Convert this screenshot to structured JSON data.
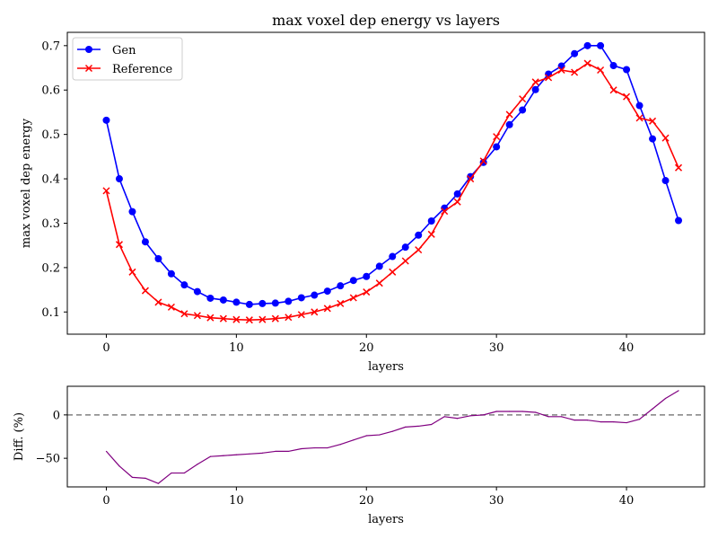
{
  "chart_data": [
    {
      "type": "line",
      "title": "max voxel dep energy vs layers",
      "xlabel": "layers",
      "ylabel": "max voxel dep energy",
      "xlim": [
        -3,
        46
      ],
      "ylim": [
        0.05,
        0.73
      ],
      "xticks": [
        0,
        10,
        20,
        30,
        40
      ],
      "yticks": [
        0.1,
        0.2,
        0.3,
        0.4,
        0.5,
        0.6,
        0.7
      ],
      "grid": false,
      "legend": "top-left",
      "x": [
        0,
        1,
        2,
        3,
        4,
        5,
        6,
        7,
        8,
        9,
        10,
        11,
        12,
        13,
        14,
        15,
        16,
        17,
        18,
        19,
        20,
        21,
        22,
        23,
        24,
        25,
        26,
        27,
        28,
        29,
        30,
        31,
        32,
        33,
        34,
        35,
        36,
        37,
        38,
        39,
        40,
        41,
        42,
        43,
        44
      ],
      "series": [
        {
          "name": "Gen",
          "color": "#0000ff",
          "marker": "circle",
          "values": [
            0.532,
            0.4,
            0.326,
            0.258,
            0.22,
            0.186,
            0.161,
            0.146,
            0.131,
            0.127,
            0.122,
            0.117,
            0.119,
            0.12,
            0.124,
            0.132,
            0.138,
            0.147,
            0.159,
            0.171,
            0.18,
            0.203,
            0.225,
            0.246,
            0.273,
            0.305,
            0.334,
            0.366,
            0.405,
            0.437,
            0.472,
            0.522,
            0.555,
            0.601,
            0.636,
            0.654,
            0.682,
            0.7,
            0.7,
            0.655,
            0.646,
            0.565,
            0.49,
            0.396,
            0.306
          ]
        },
        {
          "name": "Reference",
          "color": "#ff0000",
          "marker": "x",
          "values": [
            0.373,
            0.252,
            0.19,
            0.148,
            0.122,
            0.111,
            0.096,
            0.092,
            0.087,
            0.085,
            0.083,
            0.082,
            0.083,
            0.085,
            0.088,
            0.094,
            0.1,
            0.108,
            0.119,
            0.132,
            0.145,
            0.165,
            0.19,
            0.215,
            0.24,
            0.275,
            0.327,
            0.348,
            0.4,
            0.44,
            0.495,
            0.545,
            0.58,
            0.618,
            0.628,
            0.645,
            0.64,
            0.66,
            0.645,
            0.6,
            0.585,
            0.537,
            0.53,
            0.492,
            0.425
          ]
        }
      ]
    },
    {
      "type": "line",
      "xlabel": "layers",
      "ylabel": "Diff. (%)",
      "xlim": [
        -3,
        46
      ],
      "ylim": [
        -83,
        33
      ],
      "xticks": [
        0,
        10,
        20,
        30,
        40
      ],
      "yticks": [
        -50,
        0
      ],
      "grid": false,
      "reference_line": {
        "y": 0,
        "style": "dashed",
        "color": "#808080"
      },
      "x": [
        0,
        1,
        2,
        3,
        4,
        5,
        6,
        7,
        8,
        9,
        10,
        11,
        12,
        13,
        14,
        15,
        16,
        17,
        18,
        19,
        20,
        21,
        22,
        23,
        24,
        25,
        26,
        27,
        28,
        29,
        30,
        31,
        32,
        33,
        34,
        35,
        36,
        37,
        38,
        39,
        40,
        41,
        42,
        43,
        44
      ],
      "series": [
        {
          "color": "#800080",
          "values": [
            -42,
            -59,
            -72,
            -73,
            -79,
            -67,
            -67,
            -57,
            -48,
            -47,
            -46,
            -45,
            -44,
            -42,
            -42,
            -39,
            -38,
            -38,
            -34,
            -29,
            -24,
            -23,
            -19,
            -14,
            -13,
            -11,
            -2,
            -4,
            -1,
            0,
            4,
            4,
            4,
            3,
            -2,
            -2,
            -6,
            -6,
            -8,
            -8,
            -9,
            -5,
            7,
            19,
            28
          ]
        }
      ]
    }
  ]
}
